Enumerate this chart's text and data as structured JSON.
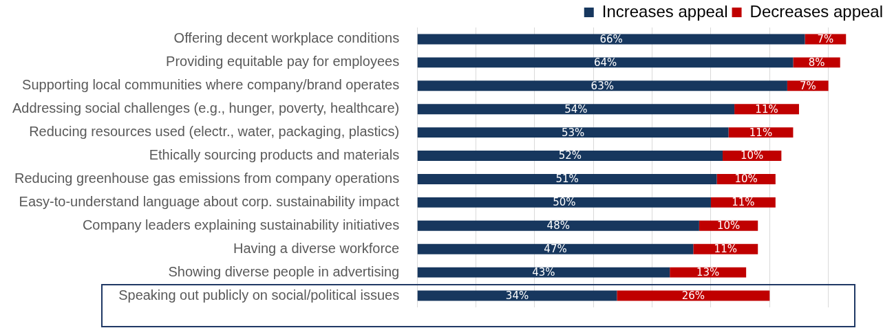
{
  "chart_data": {
    "type": "bar",
    "orientation": "horizontal",
    "stacked": true,
    "categories": [
      "Offering decent workplace conditions",
      "Providing equitable pay for employees",
      "Supporting local communities where company/brand operates",
      "Addressing social challenges (e.g., hunger, poverty, healthcare)",
      "Reducing resources used (electr., water, packaging, plastics)",
      "Ethically sourcing products and materials",
      "Reducing greenhouse gas emissions from company operations",
      "Easy-to-understand language about corp. sustainability impact",
      "Company leaders explaining sustainability initiatives",
      "Having a diverse workforce",
      "Showing diverse people in advertising",
      "Speaking out publicly on social/political issues"
    ],
    "series": [
      {
        "name": "Increases appeal",
        "color": "#17375e",
        "values": [
          66,
          64,
          63,
          54,
          53,
          52,
          51,
          50,
          48,
          47,
          43,
          34
        ],
        "value_labels": [
          "66%",
          "64%",
          "63%",
          "54%",
          "53%",
          "52%",
          "51%",
          "50%",
          "48%",
          "47%",
          "43%",
          "34%"
        ]
      },
      {
        "name": "Decreases appeal",
        "color": "#c00000",
        "values": [
          7,
          8,
          7,
          11,
          11,
          10,
          10,
          11,
          10,
          11,
          13,
          26
        ],
        "value_labels": [
          "7%",
          "8%",
          "7%",
          "11%",
          "11%",
          "10%",
          "10%",
          "11%",
          "10%",
          "11%",
          "13%",
          "26%"
        ]
      }
    ],
    "xticks": [
      {
        "value": 0,
        "label": null
      },
      {
        "value": 10,
        "label": null
      },
      {
        "value": 20,
        "label": null
      },
      {
        "value": 30,
        "label": null
      },
      {
        "value": 40,
        "label": null
      },
      {
        "value": 50,
        "label": null
      },
      {
        "value": 60,
        "label": null
      },
      {
        "value": 70,
        "label": null
      }
    ],
    "grid": "x",
    "legend": "top right",
    "tick_labels": "y"
  }
}
